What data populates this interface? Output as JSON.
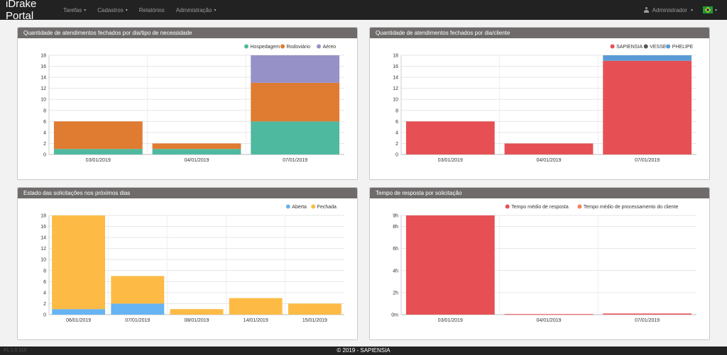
{
  "app": {
    "title": "iDrake Portal"
  },
  "nav": {
    "items": [
      {
        "label": "Tarefas",
        "dropdown": true
      },
      {
        "label": "Cadastros",
        "dropdown": true
      },
      {
        "label": "Relatórios",
        "dropdown": false
      },
      {
        "label": "Administração",
        "dropdown": true
      }
    ],
    "user_label": "Administrador",
    "caret": "▾"
  },
  "panels": [
    {
      "title": "Quantidade de atendimentos fechados por dia/tipo de necessidade"
    },
    {
      "title": "Quantidade de atendimentos fechados por dia/cliente"
    },
    {
      "title": "Estado das solicitações nos próximos dias"
    },
    {
      "title": "Tempo de resposta por solicitação"
    }
  ],
  "chart_data": [
    {
      "type": "bar",
      "stacked": true,
      "categories": [
        "03/01/2019",
        "04/01/2019",
        "07/01/2019"
      ],
      "series": [
        {
          "name": "Hospedagem",
          "color": "#4fb99f",
          "values": [
            1,
            1,
            6
          ]
        },
        {
          "name": "Rodoviário",
          "color": "#e07b32",
          "values": [
            5,
            1,
            7
          ]
        },
        {
          "name": "Aéreo",
          "color": "#9691c6",
          "values": [
            0,
            0,
            5
          ]
        }
      ],
      "ylim": [
        0,
        18
      ],
      "yticks": [
        "0",
        "2",
        "4",
        "6",
        "8",
        "10",
        "12",
        "14",
        "16",
        "18"
      ],
      "grid": true,
      "legend": "top-right"
    },
    {
      "type": "bar",
      "stacked": true,
      "categories": [
        "03/01/2019",
        "04/01/2019",
        "07/01/2019"
      ],
      "series": [
        {
          "name": "SAPIENSIA",
          "color": "#e65054",
          "values": [
            6,
            2,
            17
          ]
        },
        {
          "name": "VESSE",
          "color": "#555555",
          "values": [
            0,
            0,
            0
          ]
        },
        {
          "name": "PHELIPE",
          "color": "#5b9bd5",
          "values": [
            0,
            0,
            1
          ]
        }
      ],
      "ylim": [
        0,
        18
      ],
      "yticks": [
        "0",
        "2",
        "4",
        "6",
        "8",
        "10",
        "12",
        "14",
        "16",
        "18"
      ],
      "grid": true,
      "legend": "top-right"
    },
    {
      "type": "bar",
      "stacked": true,
      "categories": [
        "06/01/2019",
        "07/01/2019",
        "08/01/2019",
        "14/01/2019",
        "15/01/2019"
      ],
      "series": [
        {
          "name": "Aberta",
          "color": "#66b4f3",
          "values": [
            1,
            2,
            0,
            0,
            0
          ]
        },
        {
          "name": "Fechada",
          "color": "#fdbb45",
          "values": [
            17,
            5,
            1,
            3,
            2
          ]
        }
      ],
      "ylim": [
        0,
        18
      ],
      "yticks": [
        "0",
        "2",
        "4",
        "6",
        "8",
        "10",
        "12",
        "14",
        "16",
        "18"
      ],
      "grid": true,
      "legend": "top-right"
    },
    {
      "type": "bar",
      "stacked": true,
      "categories": [
        "03/01/2019",
        "04/01/2019",
        "07/01/2019"
      ],
      "series": [
        {
          "name": "Tempo médio de resposta",
          "color": "#e65054",
          "values": [
            9,
            0.05,
            0.1
          ]
        },
        {
          "name": "Tempo médio de processamento do cliente",
          "color": "#f0845a",
          "values": [
            0,
            0,
            0
          ]
        }
      ],
      "ylim": [
        0,
        9
      ],
      "yticks": [
        "0m",
        "2h",
        "4h",
        "6h",
        "8h",
        "9h"
      ],
      "ytick_values": [
        0,
        2,
        4,
        6,
        8,
        9
      ],
      "grid": true,
      "legend": "top-right"
    }
  ],
  "footer": {
    "version": "#1.1.0.110",
    "copyright": "© 2019 - SAPIENSIA"
  }
}
